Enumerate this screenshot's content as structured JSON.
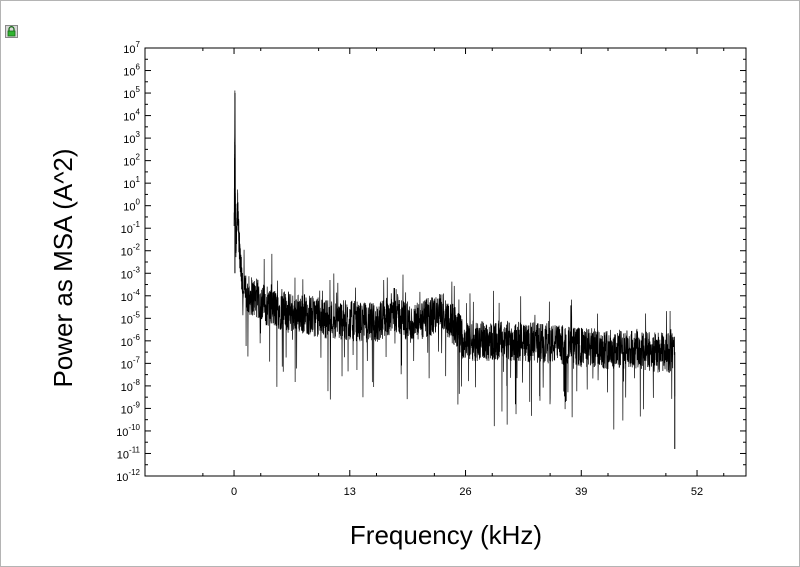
{
  "chart_data": {
    "type": "line",
    "title": "",
    "xlabel": "Frequency (kHz)",
    "ylabel": "Power as MSA (A^2)",
    "xlim": [
      -10,
      57.5
    ],
    "ylim_exponent": [
      -12,
      7
    ],
    "yscale": "log",
    "x_ticks": [
      {
        "value": 0,
        "label": "0"
      },
      {
        "value": 13,
        "label": "13"
      },
      {
        "value": 26,
        "label": "26"
      },
      {
        "value": 39,
        "label": "39"
      },
      {
        "value": 52,
        "label": "52"
      }
    ],
    "y_tick_base": "10",
    "y_tick_exponents": [
      "7",
      "6",
      "5",
      "4",
      "3",
      "2",
      "1",
      "0",
      "-1",
      "-2",
      "-3",
      "-4",
      "-5",
      "-6",
      "-7",
      "-8",
      "-9",
      "-10",
      "-11",
      "-12"
    ],
    "grid": false,
    "legend": "none",
    "series": [
      {
        "color": "#000000",
        "x": [
          0,
          0.1,
          0.2,
          0.4,
          0.6,
          1,
          2,
          4,
          6,
          8,
          10,
          13,
          16,
          18,
          20,
          23.5,
          26,
          30,
          35,
          39,
          44,
          48,
          49.5
        ],
        "y": [
          0.1,
          100000.0,
          0.01,
          1.0,
          0.01,
          0.0001,
          0.0001,
          3e-05,
          2e-05,
          1.5e-05,
          1e-05,
          8e-06,
          6e-06,
          2e-05,
          5e-06,
          2e-05,
          1e-06,
          1e-06,
          8e-07,
          5e-07,
          4e-07,
          3e-07,
          3e-07
        ]
      }
    ]
  }
}
